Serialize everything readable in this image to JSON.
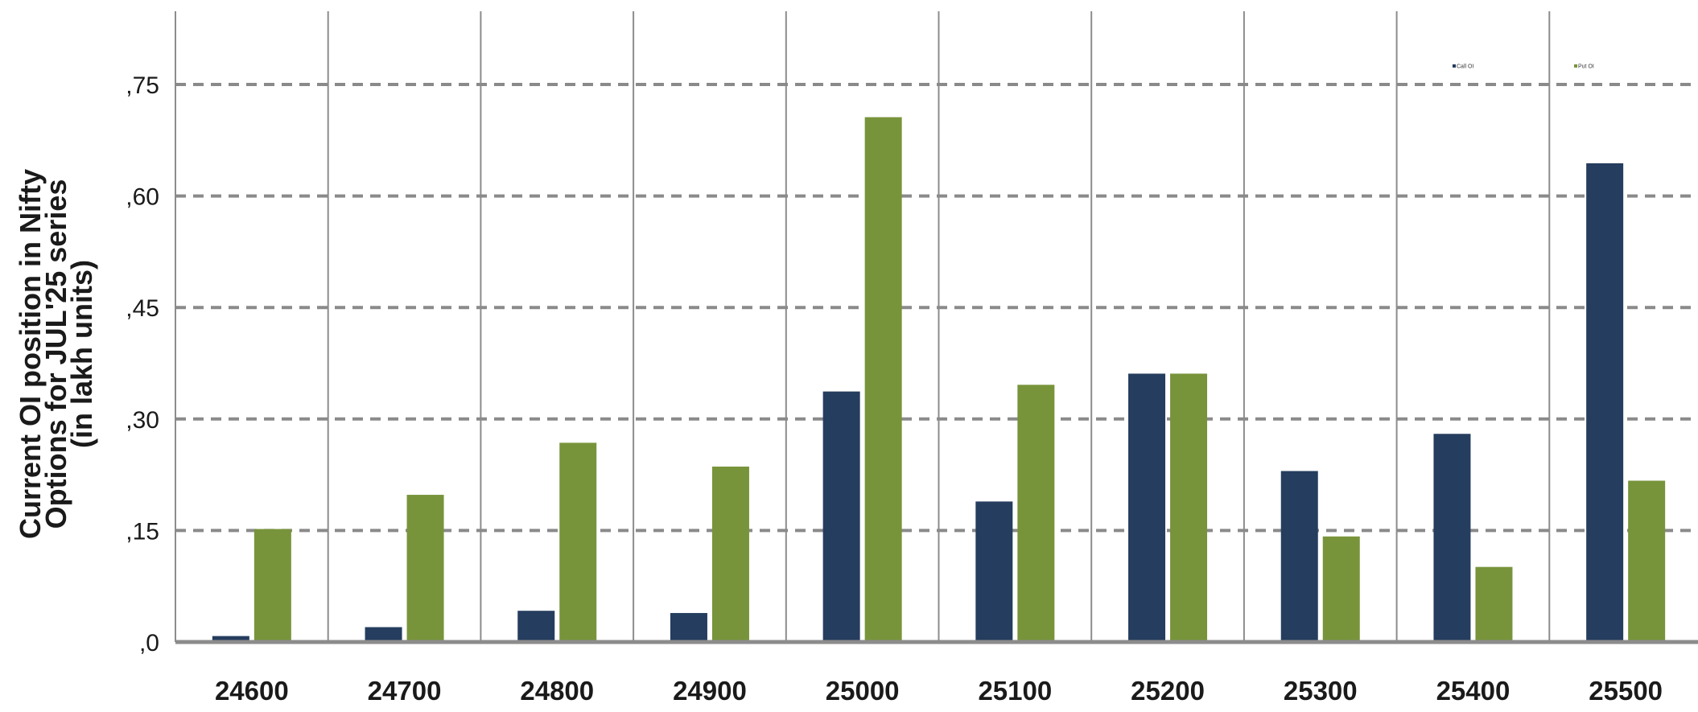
{
  "chart_data": {
    "type": "bar",
    "title": "",
    "ylabel_lines": [
      "Current OI position in Nifty",
      "Options for JUL'25 series",
      "(in lakh units)"
    ],
    "xlabel": "",
    "categories": [
      "24600",
      "24700",
      "24800",
      "24900",
      "25000",
      "25100",
      "25200",
      "25300",
      "25400",
      "25500"
    ],
    "series": [
      {
        "name": "Call OI",
        "color": "#253d5e",
        "values": [
          0.008,
          0.02,
          0.042,
          0.039,
          0.337,
          0.189,
          0.361,
          0.23,
          0.28,
          0.644
        ]
      },
      {
        "name": "Put OI",
        "color": "#78943b",
        "values": [
          0.152,
          0.198,
          0.268,
          0.236,
          0.706,
          0.346,
          0.361,
          0.142,
          0.101,
          0.217
        ]
      }
    ],
    "ylim": [
      0,
      0.85
    ],
    "yticks": [
      0,
      0.15,
      0.3,
      0.45,
      0.6,
      0.75
    ],
    "ytick_labels": [
      ",0",
      ",15",
      ",30",
      ",45",
      ",60",
      ",75"
    ],
    "grid": {
      "horizontal": "dashed",
      "vertical_separators": true
    },
    "legend": {
      "placement": "top-right",
      "labels": [
        "Call OI",
        "Put OI"
      ]
    }
  }
}
